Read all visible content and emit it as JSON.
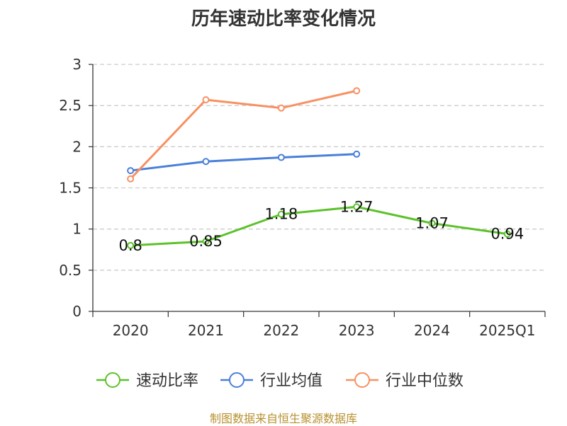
{
  "chart_title": "历年速动比率变化情况",
  "source_note": "制图数据来自恒生聚源数据库",
  "chart_data": {
    "type": "line",
    "title": "历年速动比率变化情况",
    "xlabel": "",
    "ylabel": "",
    "categories": [
      "2020",
      "2021",
      "2022",
      "2023",
      "2024",
      "2025Q1"
    ],
    "ylim": [
      0,
      3
    ],
    "yticks": [
      "0",
      "0.5",
      "1",
      "1.5",
      "2",
      "2.5",
      "3"
    ],
    "grid": true,
    "legend_position": "bottom",
    "series": [
      {
        "name": "速动比率",
        "color": "#5cc22b",
        "values": [
          0.8,
          0.85,
          1.18,
          1.27,
          1.07,
          0.94
        ],
        "labels": [
          "0.8",
          "0.85",
          "1.18",
          "1.27",
          "1.07",
          "0.94"
        ]
      },
      {
        "name": "行业均值",
        "color": "#4a7fd9",
        "values": [
          1.71,
          1.82,
          1.87,
          1.91,
          null,
          null
        ]
      },
      {
        "name": "行业中位数",
        "color": "#f79162",
        "values": [
          1.61,
          2.57,
          2.47,
          2.68,
          null,
          null
        ]
      }
    ]
  }
}
